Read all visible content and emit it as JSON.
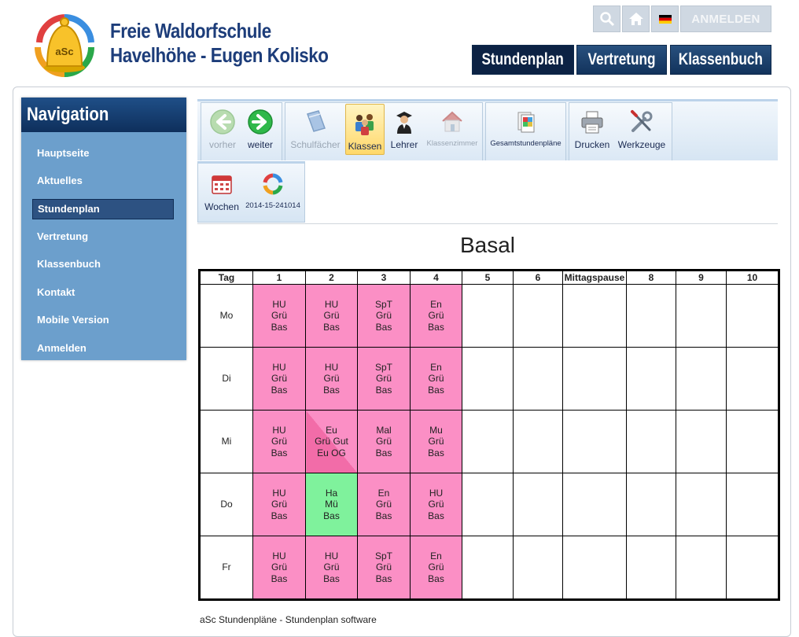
{
  "header": {
    "school_line1": "Freie Waldorfschule",
    "school_line2": "Havelhöhe - Eugen Kolisko",
    "logo_text": "aSc",
    "util": {
      "login": "ANMELDEN"
    },
    "topnav": [
      {
        "label": "Stundenplan",
        "active": true
      },
      {
        "label": "Vertretung",
        "active": false
      },
      {
        "label": "Klassenbuch",
        "active": false
      }
    ]
  },
  "sidebar": {
    "title": "Navigation",
    "items": [
      {
        "label": "Hauptseite"
      },
      {
        "label": "Aktuelles"
      },
      {
        "label": "Stundenplan",
        "active": true
      },
      {
        "label": "Vertretung"
      },
      {
        "label": "Klassenbuch"
      },
      {
        "label": "Kontakt"
      },
      {
        "label": "Mobile Version"
      },
      {
        "label": "Anmelden"
      }
    ]
  },
  "toolbar": {
    "prev": "vorher",
    "next": "weiter",
    "subjects": "Schulfächer",
    "classes": "Klassen",
    "teachers": "Lehrer",
    "rooms": "Klassenzimmer",
    "overall": "Gesamtstundenpläne",
    "print": "Drucken",
    "tools": "Werkzeuge",
    "weeks": "Wochen",
    "period": "2014-15-241014"
  },
  "timetable": {
    "title": "Basal",
    "headers": [
      "Tag",
      "1",
      "2",
      "3",
      "4",
      "5",
      "6",
      "Mittagspause",
      "8",
      "9",
      "10"
    ],
    "days": [
      "Mo",
      "Di",
      "Mi",
      "Do",
      "Fr"
    ],
    "rows": [
      [
        [
          "HU",
          "Grü",
          "Bas"
        ],
        [
          "HU",
          "Grü",
          "Bas"
        ],
        [
          "SpT",
          "Grü",
          "Bas"
        ],
        [
          "En",
          "Grü",
          "Bas"
        ]
      ],
      [
        [
          "HU",
          "Grü",
          "Bas"
        ],
        [
          "HU",
          "Grü",
          "Bas"
        ],
        [
          "SpT",
          "Grü",
          "Bas"
        ],
        [
          "En",
          "Grü",
          "Bas"
        ]
      ],
      [
        [
          "HU",
          "Grü",
          "Bas"
        ],
        [
          "Eu",
          "Grü Gut",
          "Eu OG"
        ],
        [
          "Mal",
          "Grü",
          "Bas"
        ],
        [
          "Mu",
          "Grü",
          "Bas"
        ]
      ],
      [
        [
          "HU",
          "Grü",
          "Bas"
        ],
        [
          "Ha",
          "Mü",
          "Bas"
        ],
        [
          "En",
          "Grü",
          "Bas"
        ],
        [
          "HU",
          "Grü",
          "Bas"
        ]
      ],
      [
        [
          "HU",
          "Grü",
          "Bas"
        ],
        [
          "HU",
          "Grü",
          "Bas"
        ],
        [
          "SpT",
          "Grü",
          "Bas"
        ],
        [
          "En",
          "Grü",
          "Bas"
        ]
      ]
    ],
    "colors": {
      "lesson": "#fb8fc5",
      "lesson_alt": "#7ff29c",
      "lesson_split": "#f26ca8"
    }
  },
  "footer": "aSc Stundenpläne - Stundenplan software"
}
